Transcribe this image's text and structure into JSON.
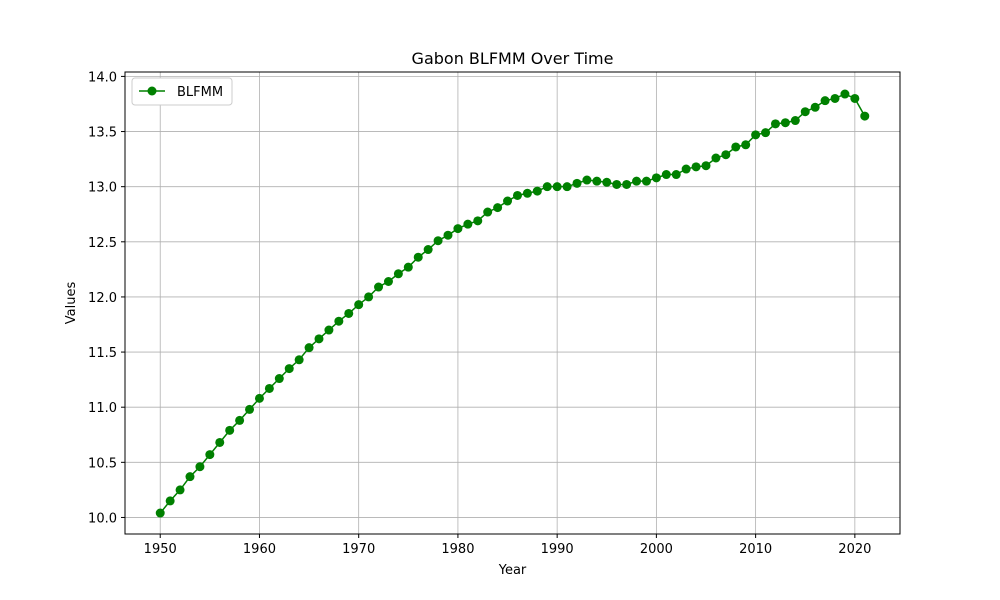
{
  "chart_data": {
    "type": "line",
    "title": "Gabon BLFMM Over Time",
    "xlabel": "Year",
    "ylabel": "Values",
    "xlim": [
      1946.45,
      2024.55
    ],
    "ylim": [
      9.85,
      14.04
    ],
    "x_ticks": [
      1950,
      1960,
      1970,
      1980,
      1990,
      2000,
      2010,
      2020
    ],
    "y_ticks": [
      10.0,
      10.5,
      11.0,
      11.5,
      12.0,
      12.5,
      13.0,
      13.5,
      14.0
    ],
    "x_tick_labels": [
      "1950",
      "1960",
      "1970",
      "1980",
      "1990",
      "2000",
      "2010",
      "2020"
    ],
    "y_tick_labels": [
      "10.0",
      "10.5",
      "11.0",
      "11.5",
      "12.0",
      "12.5",
      "13.0",
      "13.5",
      "14.0"
    ],
    "grid": true,
    "legend_position": "top-left",
    "x": [
      1950,
      1951,
      1952,
      1953,
      1954,
      1955,
      1956,
      1957,
      1958,
      1959,
      1960,
      1961,
      1962,
      1963,
      1964,
      1965,
      1966,
      1967,
      1968,
      1969,
      1970,
      1971,
      1972,
      1973,
      1974,
      1975,
      1976,
      1977,
      1978,
      1979,
      1980,
      1981,
      1982,
      1983,
      1984,
      1985,
      1986,
      1987,
      1988,
      1989,
      1990,
      1991,
      1992,
      1993,
      1994,
      1995,
      1996,
      1997,
      1998,
      1999,
      2000,
      2001,
      2002,
      2003,
      2004,
      2005,
      2006,
      2007,
      2008,
      2009,
      2010,
      2011,
      2012,
      2013,
      2014,
      2015,
      2016,
      2017,
      2018,
      2019,
      2020,
      2021
    ],
    "series": [
      {
        "name": "BLFMM",
        "color": "#008000",
        "marker": "circle",
        "values": [
          10.04,
          10.15,
          10.25,
          10.37,
          10.46,
          10.57,
          10.68,
          10.79,
          10.88,
          10.98,
          11.08,
          11.17,
          11.26,
          11.35,
          11.43,
          11.54,
          11.62,
          11.7,
          11.78,
          11.85,
          11.93,
          12.0,
          12.09,
          12.14,
          12.21,
          12.27,
          12.36,
          12.43,
          12.51,
          12.56,
          12.62,
          12.66,
          12.69,
          12.77,
          12.81,
          12.87,
          12.92,
          12.94,
          12.96,
          13.0,
          13.0,
          13.0,
          13.03,
          13.06,
          13.05,
          13.04,
          13.02,
          13.02,
          13.05,
          13.05,
          13.08,
          13.11,
          13.11,
          13.16,
          13.18,
          13.19,
          13.26,
          13.29,
          13.36,
          13.38,
          13.47,
          13.49,
          13.57,
          13.58,
          13.6,
          13.68,
          13.72,
          13.78,
          13.8,
          13.84,
          13.8,
          13.64
        ]
      }
    ]
  }
}
